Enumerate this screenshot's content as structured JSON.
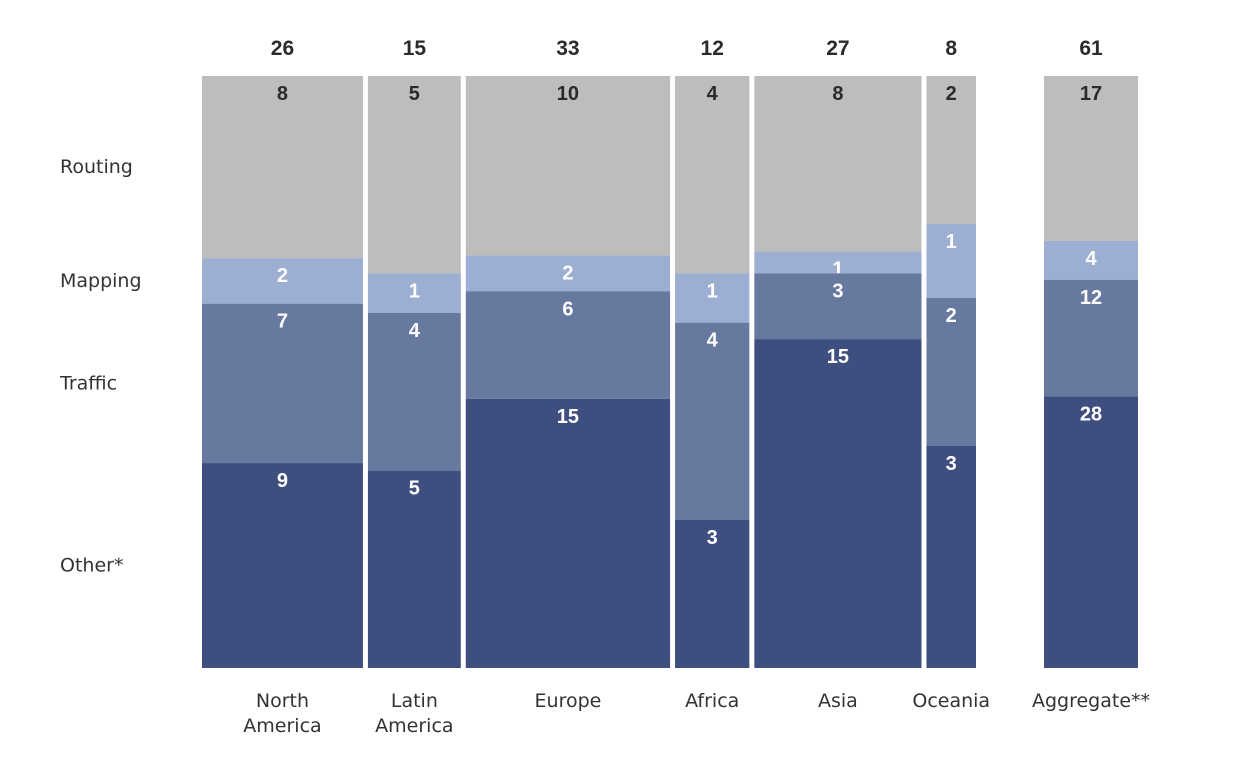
{
  "chart_data": {
    "type": "bar",
    "subtype": "marimekko-stacked-100",
    "categories": [
      "North America",
      "Latin America",
      "Europe",
      "Africa",
      "Asia",
      "Oceania",
      "Aggregate**"
    ],
    "category_label_lines": [
      [
        "North",
        "America"
      ],
      [
        "Latin",
        "America"
      ],
      [
        "Europe"
      ],
      [
        "Africa"
      ],
      [
        "Asia"
      ],
      [
        "Oceania"
      ],
      [
        "Aggregate**"
      ]
    ],
    "totals": [
      26,
      15,
      33,
      12,
      27,
      8,
      61
    ],
    "series": [
      {
        "name": "Routing",
        "values": [
          8,
          5,
          10,
          4,
          8,
          2,
          17
        ],
        "color": "#bdbdbc",
        "label_color": "#2b2b2b"
      },
      {
        "name": "Mapping",
        "values": [
          2,
          1,
          2,
          1,
          1,
          1,
          4
        ],
        "color": "#9caed1",
        "label_color": "#ffffff"
      },
      {
        "name": "Traffic",
        "values": [
          7,
          4,
          6,
          4,
          3,
          2,
          12
        ],
        "color": "#68799f",
        "label_color": "#ffffff"
      },
      {
        "name": "Other*",
        "values": [
          9,
          5,
          15,
          3,
          15,
          3,
          28
        ],
        "color": "#3e4f7f",
        "label_color": "#ffffff"
      }
    ]
  }
}
